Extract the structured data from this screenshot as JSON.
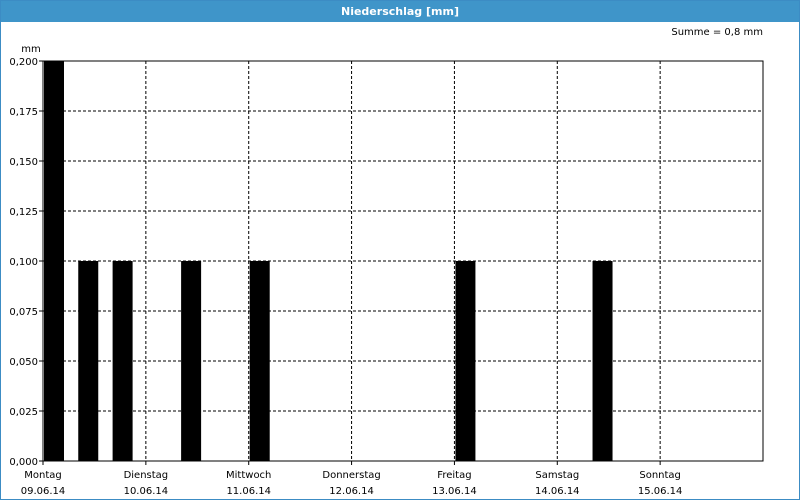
{
  "window": {
    "title": "Niederschlag [mm]"
  },
  "summary": "Summe = 0,8 mm",
  "colors": {
    "titlebar": "#3f95c9",
    "bar": "#000000",
    "grid": "#000000"
  },
  "chart_data": {
    "type": "bar",
    "title": "Niederschlag [mm]",
    "ylabel": "mm",
    "ylim": [
      0,
      0.2
    ],
    "yticks": [
      0.0,
      0.025,
      0.05,
      0.075,
      0.1,
      0.125,
      0.15,
      0.175,
      0.2
    ],
    "ytick_labels": [
      "0,000",
      "0,025",
      "0,050",
      "0,075",
      "0,100",
      "0,125",
      "0,150",
      "0,175",
      "0,200"
    ],
    "xlim": [
      0,
      7
    ],
    "days": [
      {
        "name": "Montag",
        "date": "09.06.14"
      },
      {
        "name": "Dienstag",
        "date": "10.06.14"
      },
      {
        "name": "Mittwoch",
        "date": "11.06.14"
      },
      {
        "name": "Donnerstag",
        "date": "12.06.14"
      },
      {
        "name": "Freitag",
        "date": "13.06.14"
      },
      {
        "name": "Samstag",
        "date": "14.06.14"
      },
      {
        "name": "Sonntag",
        "date": "15.06.14"
      }
    ],
    "bars": [
      {
        "x": 0.0,
        "value": 0.2
      },
      {
        "x": 0.333,
        "value": 0.1
      },
      {
        "x": 0.667,
        "value": 0.1
      },
      {
        "x": 1.333,
        "value": 0.1
      },
      {
        "x": 2.0,
        "value": 0.1
      },
      {
        "x": 4.0,
        "value": 0.1
      },
      {
        "x": 5.333,
        "value": 0.1
      }
    ],
    "grid": true
  }
}
